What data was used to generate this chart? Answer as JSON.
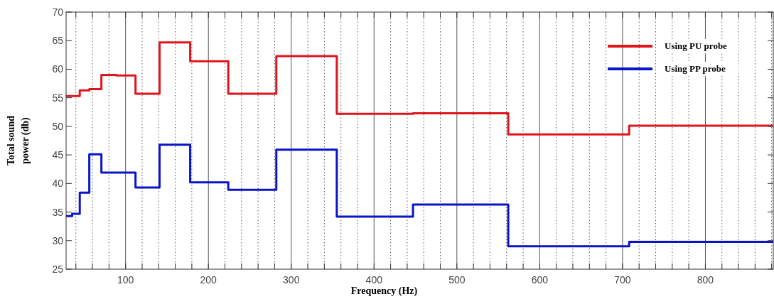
{
  "chart_data": {
    "type": "step",
    "xlabel": "Frequency (Hz)",
    "ylabel": "Total sound power (db)",
    "x": [
      28.2,
      35.5,
      44.7,
      56.2,
      70.8,
      89.1,
      112,
      141,
      178,
      224,
      282,
      355,
      447,
      562,
      708,
      882
    ],
    "series": [
      {
        "name": "Using PU probe",
        "color": "#e0141c",
        "values": [
          55.3,
          55.3,
          56.3,
          56.5,
          59.0,
          58.9,
          55.7,
          64.7,
          61.4,
          55.7,
          62.3,
          52.2,
          52.3,
          48.6,
          50.1,
          50.1
        ]
      },
      {
        "name": "Using PP probe",
        "color": "#0a14c8",
        "values": [
          34.3,
          34.7,
          38.4,
          45.1,
          41.9,
          41.9,
          39.3,
          46.8,
          40.2,
          38.9,
          45.9,
          34.2,
          36.3,
          29.0,
          29.8,
          29.8
        ]
      }
    ],
    "xlim": [
      28.2,
      882
    ],
    "xticks": [
      {
        "value": 40,
        "label": null
      },
      {
        "value": 60,
        "label": null
      },
      {
        "value": 80,
        "label": null
      },
      100,
      {
        "value": 120,
        "label": null
      },
      {
        "value": 140,
        "label": null
      },
      {
        "value": 160,
        "label": null
      },
      {
        "value": 180,
        "label": null
      },
      200,
      {
        "value": 220,
        "label": null
      },
      {
        "value": 240,
        "label": null
      },
      {
        "value": 260,
        "label": null
      },
      {
        "value": 280,
        "label": null
      },
      300,
      {
        "value": 320,
        "label": null
      },
      {
        "value": 340,
        "label": null
      },
      {
        "value": 360,
        "label": null
      },
      {
        "value": 380,
        "label": null
      },
      400,
      {
        "value": 420,
        "label": null
      },
      {
        "value": 440,
        "label": null
      },
      {
        "value": 460,
        "label": null
      },
      {
        "value": 480,
        "label": null
      },
      500,
      {
        "value": 520,
        "label": null
      },
      {
        "value": 540,
        "label": null
      },
      {
        "value": 560,
        "label": null
      },
      {
        "value": 580,
        "label": null
      },
      600,
      {
        "value": 620,
        "label": null
      },
      {
        "value": 640,
        "label": null
      },
      {
        "value": 660,
        "label": null
      },
      {
        "value": 680,
        "label": null
      },
      700,
      {
        "value": 720,
        "label": null
      },
      {
        "value": 740,
        "label": null
      },
      {
        "value": 760,
        "label": null
      },
      {
        "value": 780,
        "label": null
      },
      800,
      {
        "value": 820,
        "label": null
      },
      {
        "value": 840,
        "label": null
      },
      {
        "value": 860,
        "label": null
      },
      {
        "value": 880,
        "label": null
      }
    ],
    "ylim": [
      25,
      70
    ],
    "yticks": [
      25,
      30,
      35,
      40,
      45,
      50,
      55,
      60,
      65,
      70
    ],
    "grid": "x",
    "legend": "top right"
  }
}
